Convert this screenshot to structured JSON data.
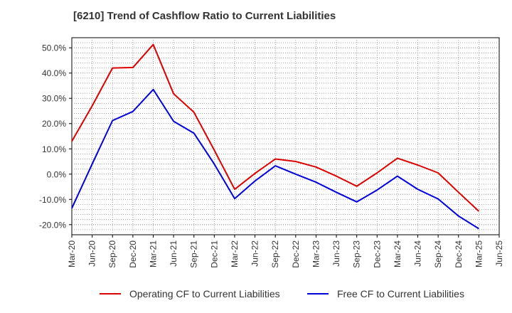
{
  "title": "[6210]  Trend of Cashflow Ratio to Current Liabilities",
  "chart_data": {
    "type": "line",
    "title": "[6210]  Trend of Cashflow Ratio to Current Liabilities",
    "xlabel": "",
    "ylabel": "",
    "x_ticks": [
      "Mar-20",
      "Jun-20",
      "Sep-20",
      "Dec-20",
      "Mar-21",
      "Jun-21",
      "Sep-21",
      "Dec-21",
      "Mar-22",
      "Jun-22",
      "Sep-22",
      "Dec-22",
      "Mar-23",
      "Jun-23",
      "Sep-23",
      "Dec-23",
      "Mar-24",
      "Jun-24",
      "Sep-24",
      "Dec-24",
      "Mar-25",
      "Jun-25"
    ],
    "y_ticks": [
      "50.0%",
      "40.0%",
      "30.0%",
      "20.0%",
      "10.0%",
      "0.0%",
      "-10.0%",
      "-20.0%"
    ],
    "y_tick_values": [
      50,
      40,
      30,
      20,
      10,
      0,
      -10,
      -20
    ],
    "ylim": [
      -24,
      54
    ],
    "grid": true,
    "legend_position": "bottom",
    "series": [
      {
        "name": "Operating CF to Current Liabilities",
        "color": "#dd0000",
        "values": [
          13.0,
          27.0,
          42.0,
          42.2,
          51.3,
          31.8,
          24.5,
          9.5,
          -6.0,
          0.3,
          6.0,
          5.0,
          2.8,
          -0.8,
          -4.8,
          0.5,
          6.3,
          3.6,
          0.5,
          -7.2,
          -14.7
        ]
      },
      {
        "name": "Free CF to Current Liabilities",
        "color": "#0000dd",
        "values": [
          -13.5,
          4.0,
          21.2,
          24.8,
          33.5,
          20.9,
          16.2,
          4.0,
          -9.7,
          -2.7,
          3.3,
          0.0,
          -3.2,
          -7.2,
          -11.0,
          -6.3,
          -0.8,
          -6.0,
          -9.8,
          -16.6,
          -21.6
        ]
      }
    ]
  }
}
